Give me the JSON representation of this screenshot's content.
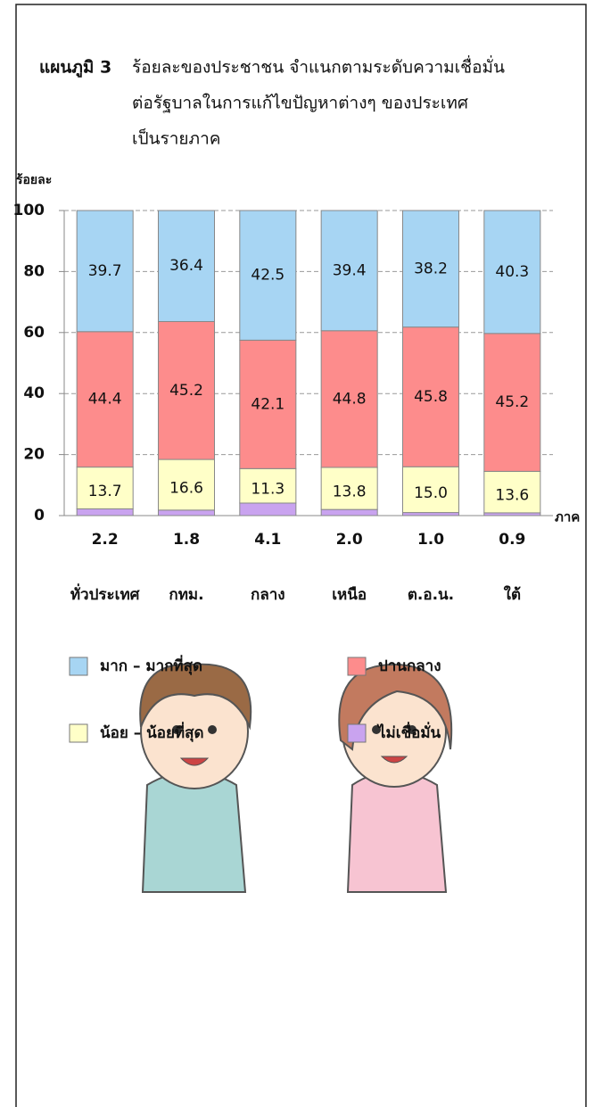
{
  "chart_data": {
    "type": "stacked-bar",
    "title": {
      "label": "แผนภูมิ 3",
      "lines": [
        "ร้อยละของประชาชน  จำแนกตามระดับความเชื่อมั่น",
        "ต่อรัฐบาลในการแก้ไขปัญหาต่างๆ ของประเทศ",
        "เป็นรายภาค"
      ]
    },
    "y_label": "ร้อยละ",
    "x_label": "ภาค",
    "categories": [
      "ทั่วประเทศ",
      "กทม.",
      "กลาง",
      "เหนือ",
      "ต.อ.น.",
      "ใต้"
    ],
    "series": [
      {
        "name": "ไม่เชื่อมั่น",
        "color": "#c9a3ef",
        "values": [
          2.2,
          1.8,
          4.1,
          2.0,
          1.0,
          0.9
        ],
        "value_labels": [
          "2.2",
          "1.8",
          "4.1",
          "2.0",
          "1.0",
          "0.9"
        ]
      },
      {
        "name": "น้อย – น้อยที่สุด",
        "color": "#ffffc8",
        "values": [
          13.7,
          16.6,
          11.3,
          13.8,
          15.0,
          13.6
        ],
        "value_labels": [
          "13.7",
          "16.6",
          "11.3",
          "13.8",
          "15.0",
          "13.6"
        ]
      },
      {
        "name": "ปานกลาง",
        "color": "#fd8c8c",
        "values": [
          44.4,
          45.2,
          42.1,
          44.8,
          45.8,
          45.2
        ],
        "value_labels": [
          "44.4",
          "45.2",
          "42.1",
          "44.8",
          "45.8",
          "45.2"
        ]
      },
      {
        "name": "มาก – มากที่สุด",
        "color": "#a7d5f3",
        "values": [
          39.7,
          36.4,
          42.5,
          39.4,
          38.2,
          40.3
        ],
        "value_labels": [
          "39.7",
          "36.4",
          "42.5",
          "39.4",
          "38.2",
          "40.3"
        ]
      }
    ],
    "ylim": [
      0,
      100
    ],
    "yticks": [
      0,
      20,
      40,
      60,
      80,
      100
    ],
    "grid": true
  }
}
